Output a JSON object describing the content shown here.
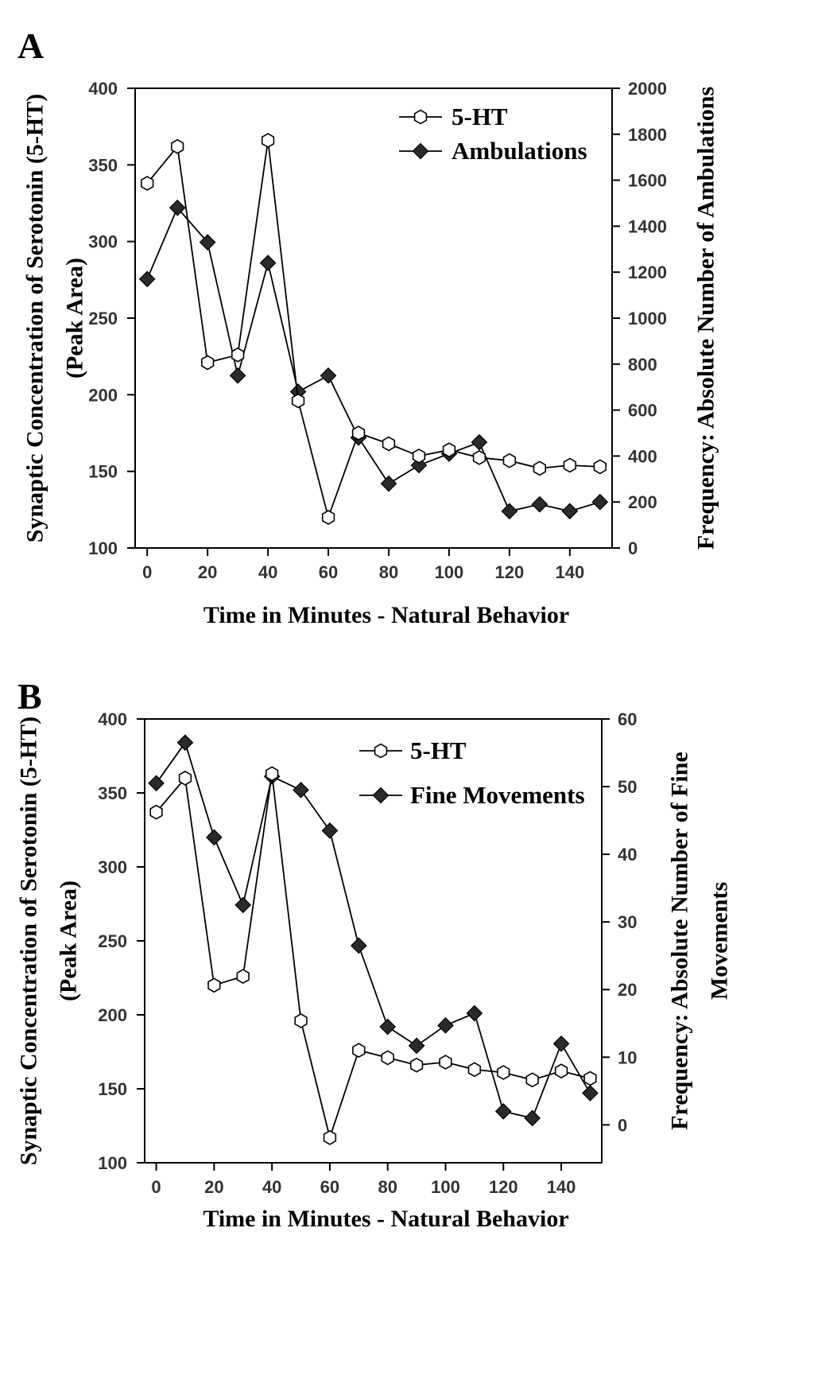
{
  "chart_data": [
    {
      "panel_label": "A",
      "type": "line",
      "xlabel": "Time in Minutes - Natural Behavior",
      "ylabel_left": [
        "Synaptic Concentration of Serotonin (5-HT)",
        "(Peak Area)"
      ],
      "ylabel_right": [
        "Frequency: Absolute Number of Ambulations"
      ],
      "xlim": [
        -4,
        154
      ],
      "ylim_left": [
        100,
        400
      ],
      "ylim_right": [
        0,
        2000
      ],
      "x_ticks": [
        0,
        20,
        40,
        60,
        80,
        100,
        120,
        140
      ],
      "y_ticks_left": [
        100,
        150,
        200,
        250,
        300,
        350,
        400
      ],
      "y_ticks_right": [
        0,
        200,
        400,
        600,
        800,
        1000,
        1200,
        1400,
        1600,
        1800,
        2000
      ],
      "legend_position": "top-right",
      "x": [
        0,
        10,
        20,
        30,
        40,
        50,
        60,
        70,
        80,
        90,
        100,
        110,
        120,
        130,
        140,
        150
      ],
      "series": [
        {
          "name": "5-HT",
          "axis": "left",
          "marker": "open-hexagon",
          "values": [
            338,
            362,
            221,
            226,
            366,
            196,
            120,
            175,
            168,
            160,
            164,
            159,
            157,
            152,
            154,
            153
          ]
        },
        {
          "name": "Ambulations",
          "axis": "right",
          "marker": "filled-diamond",
          "values": [
            1170,
            1480,
            1330,
            750,
            1240,
            680,
            750,
            480,
            280,
            360,
            410,
            460,
            160,
            190,
            160,
            200
          ]
        }
      ]
    },
    {
      "panel_label": "B",
      "type": "line",
      "xlabel": "Time in Minutes - Natural Behavior",
      "ylabel_left": [
        "Synaptic Concentration of Serotonin (5-HT)",
        "(Peak Area)"
      ],
      "ylabel_right": [
        "Frequency: Absolute Number of Fine",
        "Movements"
      ],
      "xlim": [
        -4,
        154
      ],
      "ylim_left": [
        100,
        400
      ],
      "ylim_right": [
        -5.6,
        60
      ],
      "x_ticks": [
        0,
        20,
        40,
        60,
        80,
        100,
        120,
        140
      ],
      "y_ticks_left": [
        100,
        150,
        200,
        250,
        300,
        350,
        400
      ],
      "y_ticks_right": [
        0,
        10,
        20,
        30,
        40,
        50,
        60
      ],
      "legend_position": "top-right",
      "x": [
        0,
        10,
        20,
        30,
        40,
        50,
        60,
        70,
        80,
        90,
        100,
        110,
        120,
        130,
        140,
        150
      ],
      "series": [
        {
          "name": "5-HT",
          "axis": "left",
          "marker": "open-hexagon",
          "values": [
            337,
            360,
            220,
            226,
            363,
            196,
            117,
            176,
            171,
            166,
            168,
            163,
            161,
            156,
            162,
            157
          ]
        },
        {
          "name": "Fine Movements",
          "axis": "right",
          "marker": "filled-diamond",
          "values": [
            50.5,
            56.5,
            42.5,
            32.5,
            51.5,
            49.5,
            43.5,
            26.5,
            14.5,
            11.7,
            14.7,
            16.5,
            2.0,
            1.0,
            12.0,
            4.7
          ]
        }
      ]
    }
  ]
}
